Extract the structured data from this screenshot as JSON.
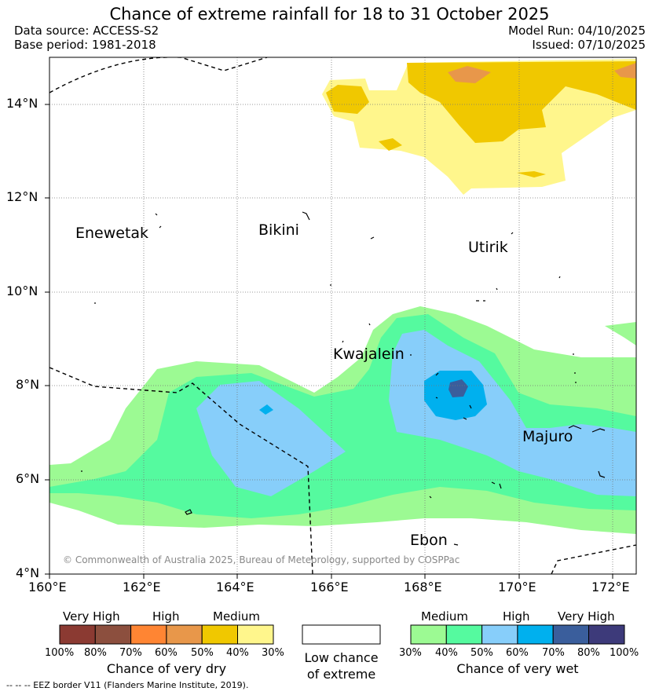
{
  "header": {
    "title": "Chance of extreme rainfall for 18 to 31 October 2025",
    "data_source": "Data source: ACCESS-S2",
    "base_period": "Base period: 1981-2018",
    "model_run": "Model Run: 04/10/2025",
    "issued": "Issued: 07/10/2025"
  },
  "axes": {
    "lat_labels": [
      "14°N",
      "12°N",
      "10°N",
      "8°N",
      "6°N",
      "4°N"
    ],
    "lon_labels": [
      "160°E",
      "162°E",
      "164°E",
      "166°E",
      "168°E",
      "170°E",
      "172°E"
    ]
  },
  "places": [
    "Enewetak",
    "Bikini",
    "Utirik",
    "Kwajalein",
    "Majuro",
    "Ebon"
  ],
  "copyright": "© Commonwealth of Australia 2025, Bureau of Meteorology, supported by COSPPac",
  "legend": {
    "dry": {
      "groups": [
        "Very High",
        "High",
        "Medium"
      ],
      "colors": [
        "#8b3a32",
        "#8c4f3e",
        "#ff8533",
        "#e8974a",
        "#f0c800",
        "#fff68c"
      ],
      "ticks": [
        "100%",
        "80%",
        "70%",
        "60%",
        "50%",
        "40%",
        "30%"
      ],
      "caption": "Chance of very dry"
    },
    "low": {
      "caption_line1": "Low chance",
      "caption_line2": "of extreme"
    },
    "wet": {
      "groups": [
        "Medium",
        "High",
        "Very High"
      ],
      "colors": [
        "#9cfa93",
        "#55fa9f",
        "#87cefa",
        "#00b0ee",
        "#3a5e9c",
        "#3d3a7a"
      ],
      "ticks": [
        "30%",
        "40%",
        "50%",
        "60%",
        "70%",
        "80%",
        "100%"
      ],
      "caption": "Chance of very wet"
    }
  },
  "footnote": "--  --  -- EEZ border V11 (Flanders Marine Institute, 2019)."
}
